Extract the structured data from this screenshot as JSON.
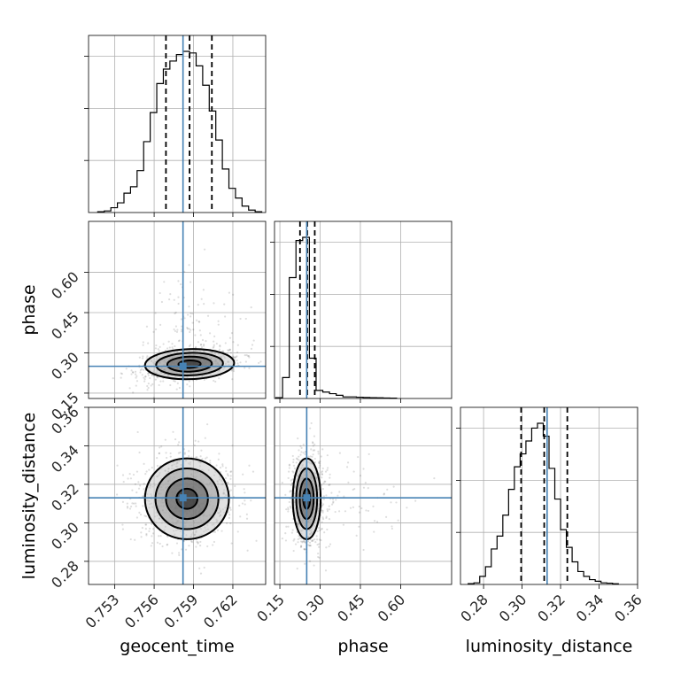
{
  "chart_data": {
    "type": "corner",
    "parameters": [
      "geocent_time",
      "phase",
      "luminosity_distance"
    ],
    "truths": {
      "geocent_time": 0.7582,
      "phase": 0.25,
      "luminosity_distance": 0.313
    },
    "truth_color": "#4682b4",
    "grid": true,
    "axes": {
      "geocent_time": {
        "range": [
          0.751,
          0.7645
        ],
        "ticks": [
          0.753,
          0.756,
          0.759,
          0.762
        ],
        "tick_labels": [
          "0.753",
          "0.756",
          "0.759",
          "0.762"
        ]
      },
      "phase": {
        "range": [
          0.13,
          0.79
        ],
        "ticks": [
          0.15,
          0.3,
          0.45,
          0.6
        ],
        "tick_labels": [
          "0.15",
          "0.30",
          "0.45",
          "0.60"
        ]
      },
      "luminosity_distance": {
        "range": [
          0.268,
          0.36
        ],
        "ticks": [
          0.28,
          0.3,
          0.32,
          0.34,
          0.36
        ],
        "tick_labels": [
          "0.28",
          "0.30",
          "0.32",
          "0.34",
          "0.36"
        ]
      }
    },
    "marginals": {
      "geocent_time": {
        "bin_edges": [
          0.7517,
          0.7522,
          0.7527,
          0.7532,
          0.7537,
          0.7542,
          0.7547,
          0.7552,
          0.7557,
          0.7562,
          0.7567,
          0.7572,
          0.7577,
          0.7582,
          0.7587,
          0.7592,
          0.7597,
          0.7602,
          0.7607,
          0.7612,
          0.7617,
          0.7622,
          0.7627,
          0.7632,
          0.7637,
          0.7642
        ],
        "counts": [
          0.005,
          0.01,
          0.03,
          0.06,
          0.12,
          0.16,
          0.26,
          0.44,
          0.62,
          0.8,
          0.89,
          0.94,
          0.98,
          1.0,
          0.99,
          0.91,
          0.79,
          0.63,
          0.45,
          0.27,
          0.15,
          0.09,
          0.04,
          0.015,
          0.005
        ],
        "quantiles": [
          0.7569,
          0.7587,
          0.7604
        ]
      },
      "phase": {
        "bin_edges": [
          0.135,
          0.16,
          0.185,
          0.21,
          0.235,
          0.26,
          0.285,
          0.31,
          0.335,
          0.36,
          0.385,
          0.41,
          0.435,
          0.46,
          0.485,
          0.51,
          0.535,
          0.56,
          0.585
        ],
        "counts": [
          0.005,
          0.13,
          0.75,
          0.98,
          1.0,
          0.25,
          0.05,
          0.04,
          0.03,
          0.02,
          0.01,
          0.01,
          0.008,
          0.006,
          0.005,
          0.004,
          0.003,
          0.002
        ],
        "quantiles": [
          0.225,
          0.252,
          0.28
        ]
      },
      "luminosity_distance": {
        "bin_edges": [
          0.272,
          0.275,
          0.278,
          0.281,
          0.284,
          0.287,
          0.29,
          0.293,
          0.296,
          0.299,
          0.302,
          0.305,
          0.308,
          0.311,
          0.314,
          0.317,
          0.32,
          0.323,
          0.326,
          0.329,
          0.332,
          0.335,
          0.338,
          0.341,
          0.344,
          0.347,
          0.35
        ],
        "counts": [
          0.005,
          0.01,
          0.05,
          0.11,
          0.22,
          0.3,
          0.43,
          0.59,
          0.73,
          0.81,
          0.89,
          0.97,
          1.0,
          0.92,
          0.72,
          0.53,
          0.34,
          0.23,
          0.14,
          0.08,
          0.05,
          0.03,
          0.02,
          0.01,
          0.008,
          0.004
        ],
        "quantiles": [
          0.2995,
          0.3115,
          0.3235
        ]
      }
    },
    "joint": [
      {
        "x": "geocent_time",
        "y": "phase",
        "center": [
          0.7587,
          0.258
        ],
        "sigma": [
          0.0017,
          0.028
        ],
        "corr": 0.35
      },
      {
        "x": "geocent_time",
        "y": "luminosity_distance",
        "center": [
          0.7585,
          0.3125
        ],
        "sigma": [
          0.0016,
          0.0105
        ],
        "corr": 0.0
      },
      {
        "x": "phase",
        "y": "luminosity_distance",
        "center": [
          0.25,
          0.3125
        ],
        "sigma": [
          0.026,
          0.0105
        ],
        "corr": 0.0
      }
    ],
    "contour_levels_sigma": [
      0.5,
      1.0,
      1.5,
      2.0
    ],
    "xlabels": [
      "geocent_time",
      "phase",
      "luminosity_distance"
    ],
    "ylabels": [
      "",
      "phase",
      "luminosity_distance"
    ]
  }
}
